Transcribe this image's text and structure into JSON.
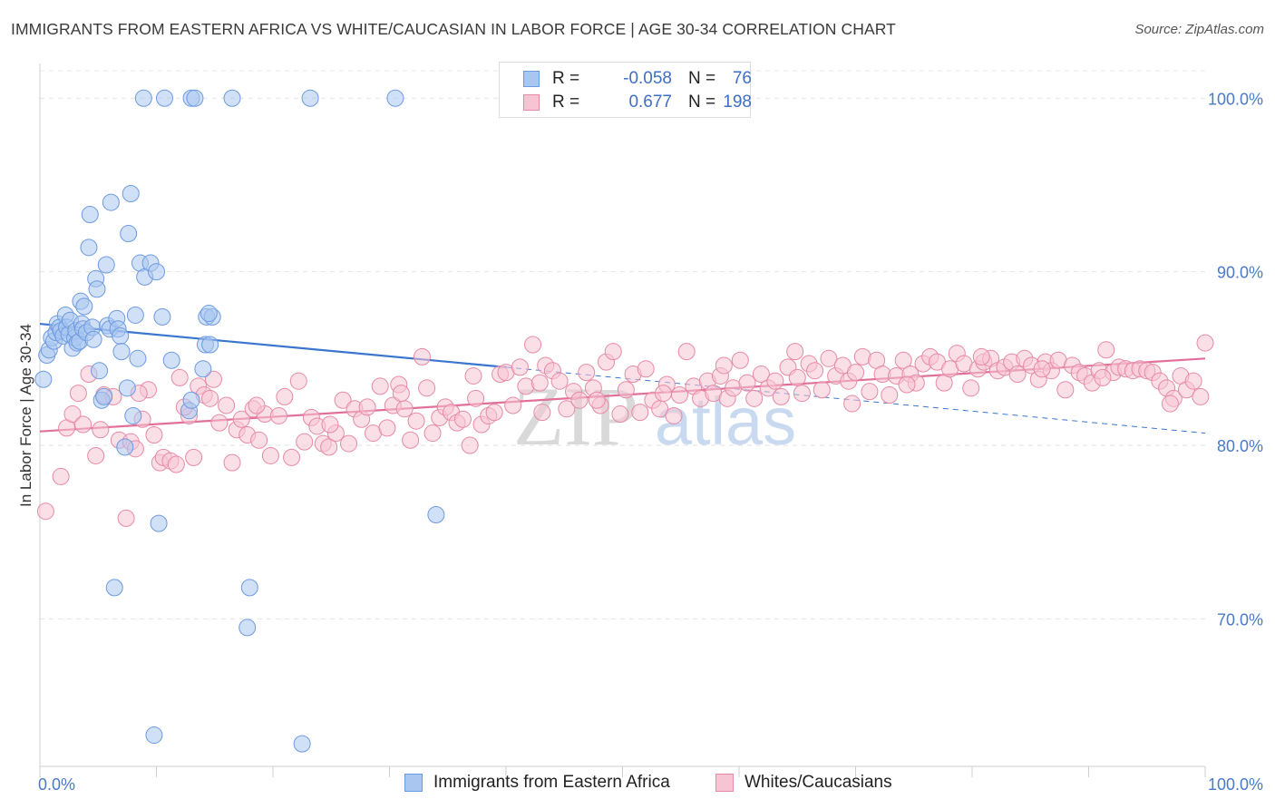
{
  "chart_data": {
    "type": "scatter",
    "title": "IMMIGRANTS FROM EASTERN AFRICA VS WHITE/CAUCASIAN IN LABOR FORCE | AGE 30-34 CORRELATION CHART",
    "source": "Source: ZipAtlas.com",
    "ylabel": "In Labor Force | Age 30-34",
    "watermark": {
      "zip": "ZIP",
      "atlas": "atlas"
    },
    "xlim": [
      0,
      100
    ],
    "ylim": [
      61.5,
      102
    ],
    "x_ticks": [
      {
        "label": "0.0%",
        "value": 0
      },
      {
        "label": "100.0%",
        "value": 100
      }
    ],
    "y_ticks": [
      {
        "label": "100.0%",
        "value": 100
      },
      {
        "label": "90.0%",
        "value": 90
      },
      {
        "label": "80.0%",
        "value": 80
      },
      {
        "label": "70.0%",
        "value": 70
      }
    ],
    "legend": {
      "r_label": "R =",
      "n_label": "N =",
      "entries": [
        {
          "r": "-0.058",
          "n": "76",
          "color": "#8fb4ec",
          "stroke": "#6d9ae0"
        },
        {
          "r": "0.677",
          "n": "198",
          "color": "#f4b6c8",
          "stroke": "#e68aa6"
        }
      ]
    },
    "series": [
      {
        "name": "Immigrants from Eastern Africa",
        "color": "#a9c6f0",
        "stroke": "#6d9ae0",
        "trend": {
          "x0": 0,
          "y0": 87.0,
          "x1": 40,
          "y1": 84.5,
          "x_dash_end": 100,
          "y_dash_end": 80.7,
          "color": "#3a76cf"
        },
        "points": [
          [
            0.3,
            83.8
          ],
          [
            0.6,
            85.2
          ],
          [
            0.8,
            85.5
          ],
          [
            1.0,
            86.2
          ],
          [
            1.2,
            86.0
          ],
          [
            1.4,
            86.5
          ],
          [
            1.5,
            87.0
          ],
          [
            1.7,
            86.8
          ],
          [
            1.8,
            86.6
          ],
          [
            2.0,
            86.3
          ],
          [
            2.2,
            87.5
          ],
          [
            2.3,
            86.8
          ],
          [
            2.5,
            86.4
          ],
          [
            2.6,
            87.2
          ],
          [
            2.8,
            85.6
          ],
          [
            3.0,
            86.2
          ],
          [
            3.1,
            86.6
          ],
          [
            3.2,
            85.9
          ],
          [
            3.4,
            86.0
          ],
          [
            3.5,
            88.3
          ],
          [
            3.6,
            87.0
          ],
          [
            3.7,
            86.7
          ],
          [
            3.8,
            88.0
          ],
          [
            4.0,
            86.5
          ],
          [
            4.2,
            91.4
          ],
          [
            4.3,
            93.3
          ],
          [
            4.5,
            86.8
          ],
          [
            4.6,
            86.1
          ],
          [
            4.8,
            89.6
          ],
          [
            4.9,
            89.0
          ],
          [
            5.1,
            84.3
          ],
          [
            5.3,
            82.6
          ],
          [
            5.5,
            82.8
          ],
          [
            5.7,
            90.4
          ],
          [
            5.8,
            86.9
          ],
          [
            6.0,
            86.7
          ],
          [
            6.1,
            94.0
          ],
          [
            6.4,
            71.8
          ],
          [
            6.6,
            87.3
          ],
          [
            6.7,
            86.7
          ],
          [
            6.9,
            86.3
          ],
          [
            7.0,
            85.4
          ],
          [
            7.3,
            79.9
          ],
          [
            7.5,
            83.3
          ],
          [
            7.6,
            92.2
          ],
          [
            7.8,
            94.5
          ],
          [
            8.0,
            81.7
          ],
          [
            8.2,
            87.5
          ],
          [
            8.4,
            85.0
          ],
          [
            8.6,
            90.5
          ],
          [
            8.9,
            100.0
          ],
          [
            9.0,
            89.7
          ],
          [
            9.5,
            90.5
          ],
          [
            9.8,
            63.3
          ],
          [
            10.0,
            90.0
          ],
          [
            10.2,
            75.5
          ],
          [
            10.5,
            87.4
          ],
          [
            10.7,
            100.0
          ],
          [
            11.3,
            84.9
          ],
          [
            12.8,
            82.0
          ],
          [
            13.0,
            82.6
          ],
          [
            13.0,
            100.0
          ],
          [
            13.3,
            100.0
          ],
          [
            14.0,
            84.4
          ],
          [
            14.2,
            85.8
          ],
          [
            14.3,
            87.4
          ],
          [
            14.8,
            87.4
          ],
          [
            16.5,
            100.0
          ],
          [
            17.8,
            69.5
          ],
          [
            18.0,
            71.8
          ],
          [
            22.5,
            62.8
          ],
          [
            23.2,
            100.0
          ],
          [
            30.5,
            100.0
          ],
          [
            34.0,
            76.0
          ],
          [
            14.5,
            87.6
          ],
          [
            14.6,
            85.8
          ]
        ]
      },
      {
        "name": "Whites/Caucasians",
        "color": "#f7c4d3",
        "stroke": "#e68aa6",
        "trend": {
          "x0": 0,
          "y0": 80.8,
          "x1": 100,
          "y1": 85.0,
          "color": "#e0709a"
        },
        "points": [
          [
            0.5,
            76.2
          ],
          [
            1.8,
            78.2
          ],
          [
            2.3,
            81.0
          ],
          [
            2.8,
            81.8
          ],
          [
            3.3,
            83.0
          ],
          [
            3.7,
            81.2
          ],
          [
            4.2,
            84.1
          ],
          [
            4.8,
            79.4
          ],
          [
            5.2,
            80.9
          ],
          [
            5.5,
            82.9
          ],
          [
            6.3,
            82.8
          ],
          [
            6.8,
            80.3
          ],
          [
            7.4,
            75.8
          ],
          [
            7.8,
            80.2
          ],
          [
            8.2,
            79.8
          ],
          [
            8.8,
            81.5
          ],
          [
            9.3,
            83.2
          ],
          [
            9.8,
            80.6
          ],
          [
            10.3,
            79.0
          ],
          [
            10.6,
            79.3
          ],
          [
            11.2,
            79.1
          ],
          [
            11.7,
            78.9
          ],
          [
            12.0,
            83.9
          ],
          [
            12.8,
            81.7
          ],
          [
            13.2,
            79.3
          ],
          [
            13.6,
            83.4
          ],
          [
            14.1,
            82.9
          ],
          [
            14.6,
            82.7
          ],
          [
            14.9,
            83.8
          ],
          [
            15.4,
            81.3
          ],
          [
            16.0,
            82.3
          ],
          [
            16.5,
            79.0
          ],
          [
            16.9,
            80.9
          ],
          [
            17.3,
            81.5
          ],
          [
            17.8,
            80.6
          ],
          [
            18.3,
            82.1
          ],
          [
            18.8,
            80.3
          ],
          [
            19.3,
            81.8
          ],
          [
            19.8,
            79.4
          ],
          [
            20.5,
            81.7
          ],
          [
            21.0,
            82.8
          ],
          [
            21.6,
            79.3
          ],
          [
            22.2,
            83.7
          ],
          [
            22.7,
            80.2
          ],
          [
            23.3,
            81.6
          ],
          [
            23.8,
            81.1
          ],
          [
            24.3,
            80.1
          ],
          [
            24.8,
            79.9
          ],
          [
            25.4,
            80.7
          ],
          [
            26.0,
            82.6
          ],
          [
            26.5,
            80.1
          ],
          [
            27.0,
            82.1
          ],
          [
            27.6,
            81.5
          ],
          [
            28.1,
            82.2
          ],
          [
            28.6,
            80.7
          ],
          [
            29.2,
            83.4
          ],
          [
            29.8,
            81.0
          ],
          [
            30.3,
            82.3
          ],
          [
            30.8,
            83.5
          ],
          [
            31.3,
            82.1
          ],
          [
            31.8,
            80.3
          ],
          [
            32.3,
            81.4
          ],
          [
            32.8,
            85.1
          ],
          [
            33.2,
            83.3
          ],
          [
            33.7,
            80.7
          ],
          [
            34.3,
            81.6
          ],
          [
            34.8,
            82.2
          ],
          [
            35.3,
            81.9
          ],
          [
            35.8,
            81.3
          ],
          [
            36.3,
            81.5
          ],
          [
            36.9,
            80.0
          ],
          [
            37.4,
            82.7
          ],
          [
            37.9,
            81.2
          ],
          [
            38.5,
            81.7
          ],
          [
            39.0,
            81.9
          ],
          [
            39.5,
            84.1
          ],
          [
            40.0,
            84.2
          ],
          [
            40.6,
            82.3
          ],
          [
            41.2,
            84.5
          ],
          [
            41.7,
            83.4
          ],
          [
            42.3,
            85.8
          ],
          [
            42.9,
            83.6
          ],
          [
            43.4,
            84.6
          ],
          [
            44.0,
            84.3
          ],
          [
            44.6,
            83.7
          ],
          [
            45.2,
            82.1
          ],
          [
            45.8,
            83.1
          ],
          [
            46.3,
            82.6
          ],
          [
            46.9,
            84.2
          ],
          [
            47.5,
            83.3
          ],
          [
            48.1,
            82.3
          ],
          [
            48.6,
            84.8
          ],
          [
            49.2,
            85.4
          ],
          [
            49.8,
            81.8
          ],
          [
            50.3,
            83.2
          ],
          [
            50.9,
            84.1
          ],
          [
            51.5,
            81.9
          ],
          [
            52.0,
            84.4
          ],
          [
            52.6,
            82.6
          ],
          [
            53.2,
            82.1
          ],
          [
            53.8,
            83.5
          ],
          [
            54.4,
            81.7
          ],
          [
            54.9,
            82.9
          ],
          [
            55.5,
            85.4
          ],
          [
            56.1,
            83.4
          ],
          [
            56.7,
            82.7
          ],
          [
            57.3,
            83.7
          ],
          [
            57.8,
            83.0
          ],
          [
            58.4,
            84.0
          ],
          [
            59.0,
            82.7
          ],
          [
            59.5,
            83.3
          ],
          [
            60.1,
            84.9
          ],
          [
            60.7,
            83.6
          ],
          [
            61.3,
            82.7
          ],
          [
            61.9,
            84.1
          ],
          [
            62.5,
            83.3
          ],
          [
            63.1,
            83.7
          ],
          [
            63.6,
            82.8
          ],
          [
            64.2,
            84.5
          ],
          [
            64.8,
            85.4
          ],
          [
            65.4,
            83.0
          ],
          [
            66.0,
            84.7
          ],
          [
            66.5,
            84.3
          ],
          [
            67.1,
            83.2
          ],
          [
            67.7,
            85.0
          ],
          [
            68.3,
            84.0
          ],
          [
            68.9,
            84.6
          ],
          [
            69.4,
            83.7
          ],
          [
            70.0,
            84.2
          ],
          [
            70.6,
            85.1
          ],
          [
            71.2,
            83.1
          ],
          [
            71.8,
            84.9
          ],
          [
            72.3,
            84.1
          ],
          [
            72.9,
            82.9
          ],
          [
            73.5,
            84.0
          ],
          [
            74.1,
            84.9
          ],
          [
            74.7,
            84.1
          ],
          [
            75.2,
            83.6
          ],
          [
            75.8,
            84.7
          ],
          [
            76.4,
            85.1
          ],
          [
            77.0,
            84.8
          ],
          [
            77.6,
            83.6
          ],
          [
            78.1,
            84.4
          ],
          [
            78.7,
            85.3
          ],
          [
            79.3,
            84.7
          ],
          [
            79.9,
            83.3
          ],
          [
            80.5,
            84.4
          ],
          [
            81.0,
            84.8
          ],
          [
            81.6,
            85.0
          ],
          [
            82.2,
            84.3
          ],
          [
            82.8,
            84.5
          ],
          [
            83.4,
            84.8
          ],
          [
            83.9,
            84.1
          ],
          [
            84.5,
            85.0
          ],
          [
            85.1,
            84.6
          ],
          [
            85.7,
            83.8
          ],
          [
            86.3,
            84.8
          ],
          [
            86.8,
            84.3
          ],
          [
            87.4,
            84.9
          ],
          [
            88.0,
            83.2
          ],
          [
            88.6,
            84.6
          ],
          [
            89.2,
            84.2
          ],
          [
            89.7,
            84.0
          ],
          [
            90.3,
            83.6
          ],
          [
            90.9,
            84.3
          ],
          [
            91.5,
            85.5
          ],
          [
            92.1,
            84.2
          ],
          [
            92.6,
            84.5
          ],
          [
            93.2,
            84.4
          ],
          [
            93.8,
            84.3
          ],
          [
            94.4,
            84.4
          ],
          [
            95.0,
            84.3
          ],
          [
            95.5,
            84.2
          ],
          [
            96.1,
            83.7
          ],
          [
            96.7,
            83.3
          ],
          [
            97.3,
            82.7
          ],
          [
            97.9,
            84.0
          ],
          [
            98.4,
            83.2
          ],
          [
            99.0,
            83.7
          ],
          [
            99.6,
            82.8
          ],
          [
            100.0,
            85.9
          ],
          [
            8.5,
            83.0
          ],
          [
            12.4,
            82.2
          ],
          [
            18.6,
            82.3
          ],
          [
            24.9,
            81.2
          ],
          [
            31.0,
            83.0
          ],
          [
            37.2,
            84.0
          ],
          [
            43.1,
            81.9
          ],
          [
            47.8,
            82.6
          ],
          [
            53.5,
            83.0
          ],
          [
            58.7,
            84.6
          ],
          [
            65.0,
            83.9
          ],
          [
            69.7,
            82.4
          ],
          [
            74.4,
            83.5
          ],
          [
            80.8,
            85.1
          ],
          [
            86.0,
            84.4
          ],
          [
            91.2,
            83.9
          ],
          [
            97.0,
            82.4
          ]
        ]
      }
    ]
  },
  "bottom_legend": [
    {
      "label": "Immigrants from Eastern Africa",
      "color": "#a9c6f0",
      "stroke": "#6d9ae0"
    },
    {
      "label": "Whites/Caucasians",
      "color": "#f7c4d3",
      "stroke": "#e68aa6"
    }
  ]
}
